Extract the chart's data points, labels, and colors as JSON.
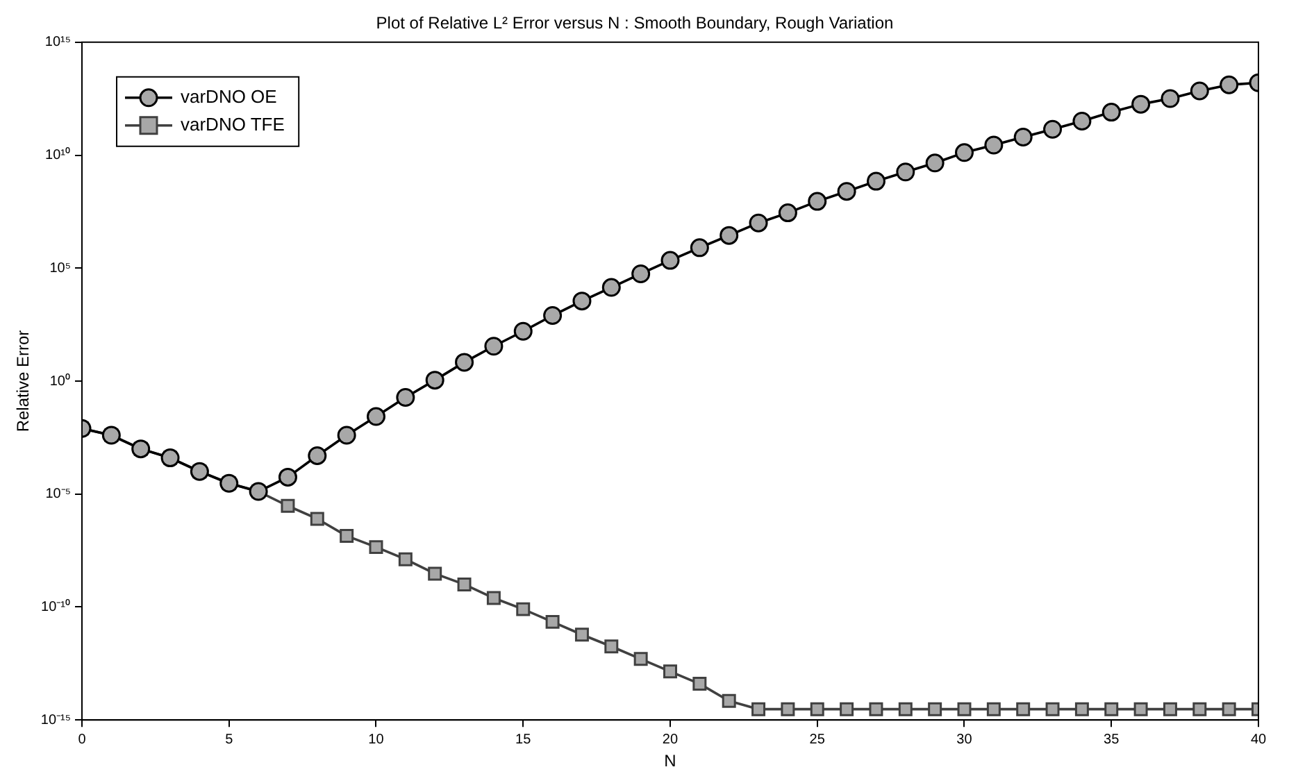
{
  "chart_data": {
    "type": "line",
    "title": "Plot of Relative L² Error versus N : Smooth Boundary, Rough Variation",
    "xlabel": "N",
    "ylabel": "Relative Error",
    "x": [
      0,
      1,
      2,
      3,
      4,
      5,
      6,
      7,
      8,
      9,
      10,
      11,
      12,
      13,
      14,
      15,
      16,
      17,
      18,
      19,
      20,
      21,
      22,
      23,
      24,
      25,
      26,
      27,
      28,
      29,
      30,
      31,
      32,
      33,
      34,
      35,
      36,
      37,
      38,
      39,
      40
    ],
    "series": [
      {
        "name": "varDNO OE",
        "color": "#000000",
        "marker": "circle",
        "values": [
          0.008,
          0.004,
          0.001,
          0.0004,
          0.0001,
          3e-05,
          1.3e-05,
          5.6e-05,
          0.0005,
          0.004,
          0.027,
          0.19,
          1.1,
          6.8,
          35,
          160,
          800,
          3500,
          14000.0,
          56000.0,
          220000.0,
          800000.0,
          2800000.0,
          10000000.0,
          28000000.0,
          90000000.0,
          250000000.0,
          700000000.0,
          1800000000.0,
          4500000000.0,
          13000000000.0,
          28000000000.0,
          63000000000.0,
          140000000000.0,
          320000000000.0,
          800000000000.0,
          1800000000000.0,
          3200000000000.0,
          7000000000000.0,
          13000000000000.0,
          16000000000000.0
        ]
      },
      {
        "name": "varDNO TFE",
        "color": "#404040",
        "marker": "square",
        "values": [
          0.008,
          0.004,
          0.001,
          0.0004,
          0.0001,
          3e-05,
          1.3e-05,
          3e-06,
          8e-07,
          1.4e-07,
          4.5e-08,
          1.3e-08,
          3e-09,
          1e-09,
          2.5e-10,
          8e-11,
          2.2e-11,
          6e-12,
          1.8e-12,
          5e-13,
          1.4e-13,
          4e-14,
          7e-15,
          3e-15,
          3e-15,
          3e-15,
          3e-15,
          3e-15,
          3e-15,
          3e-15,
          3e-15,
          3e-15,
          3e-15,
          3e-15,
          3e-15,
          3e-15,
          3e-15,
          3e-15,
          3e-15,
          3e-15,
          3e-15
        ]
      }
    ],
    "xlim": [
      0,
      40
    ],
    "xticks": [
      0,
      5,
      10,
      15,
      20,
      25,
      30,
      35,
      40
    ],
    "ylim": [
      1e-15,
      1000000000000000.0
    ],
    "yticks": [
      {
        "value": 1e-15,
        "label": "10⁻¹⁵"
      },
      {
        "value": 1e-10,
        "label": "10⁻¹⁰"
      },
      {
        "value": 1e-05,
        "label": "10⁻⁵"
      },
      {
        "value": 1,
        "label": "10⁰"
      },
      {
        "value": 100000.0,
        "label": "10⁵"
      },
      {
        "value": 10000000000.0,
        "label": "10¹⁰"
      },
      {
        "value": 1000000000000000.0,
        "label": "10¹⁵"
      }
    ],
    "log": "y",
    "grid": false,
    "legend": "top left",
    "line_style": "solid"
  }
}
